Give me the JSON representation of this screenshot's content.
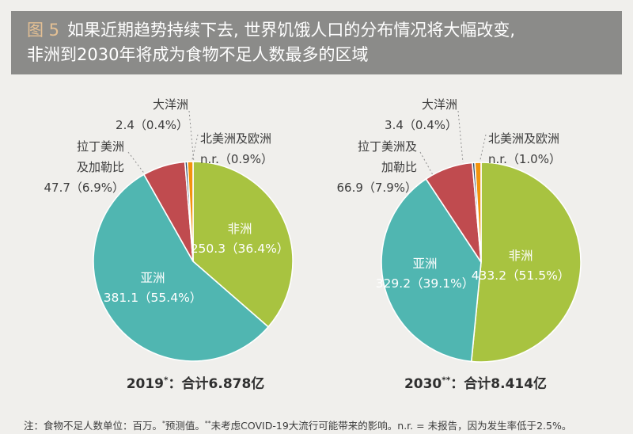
{
  "header": {
    "figure_label": "图 5",
    "title_line1": "如果近期趋势持续下去, 世界饥饿人口的分布情况将大幅改变,",
    "title_line2": "非洲到2030年将成为食物不足人数最多的区域"
  },
  "colors": {
    "title_bar_bg": "#8b8b89",
    "figure_label": "#e4c094",
    "africa": "#a8c340",
    "asia": "#50b6b1",
    "lac": "#c04b4f",
    "oceania": "#2e4d6b",
    "nae": "#f2930d",
    "page_bg": "#f0efec"
  },
  "chart_data": [
    {
      "type": "pie",
      "title": "2019*：合计6.878亿",
      "caption": {
        "year": "2019",
        "note": "*",
        "rest": "：合计6.878亿"
      },
      "unit": "百万",
      "start_angle_deg": 0,
      "direction": "clockwise",
      "slices": [
        {
          "label": "非洲",
          "value": 250.3,
          "pct": 36.4,
          "display": "250.3（36.4%）",
          "color": "#a8c340",
          "label_placement": "inside"
        },
        {
          "label": "亚洲",
          "value": 381.1,
          "pct": 55.4,
          "display": "381.1（55.4%）",
          "color": "#50b6b1",
          "label_placement": "inside"
        },
        {
          "label": "拉丁美洲及加勒比",
          "label_lines": [
            "拉丁美洲",
            "及加勒比"
          ],
          "value": 47.7,
          "pct": 6.9,
          "display": "47.7（6.9%）",
          "color": "#c04b4f",
          "label_placement": "outside"
        },
        {
          "label": "大洋洲",
          "value": 2.4,
          "pct": 0.4,
          "display": "2.4（0.4%）",
          "color": "#2e4d6b",
          "label_placement": "outside"
        },
        {
          "label": "北美洲及欧洲",
          "value": "n.r.",
          "pct": 0.9,
          "display": "n.r.（0.9%）",
          "color": "#f2930d",
          "label_placement": "outside"
        }
      ]
    },
    {
      "type": "pie",
      "title": "2030**：合计8.414亿",
      "caption": {
        "year": "2030",
        "note": "**",
        "rest": "：合计8.414亿"
      },
      "unit": "百万",
      "start_angle_deg": 0,
      "direction": "clockwise",
      "slices": [
        {
          "label": "非洲",
          "value": 433.2,
          "pct": 51.5,
          "display": "433.2（51.5%）",
          "color": "#a8c340",
          "label_placement": "inside"
        },
        {
          "label": "亚洲",
          "value": 329.2,
          "pct": 39.1,
          "display": "329.2（39.1%）",
          "color": "#50b6b1",
          "label_placement": "inside"
        },
        {
          "label": "拉丁美洲及加勒比",
          "label_lines": [
            "拉丁美洲及",
            "加勒比"
          ],
          "value": 66.9,
          "pct": 7.9,
          "display": "66.9（7.9%）",
          "color": "#c04b4f",
          "label_placement": "outside"
        },
        {
          "label": "大洋洲",
          "value": 3.4,
          "pct": 0.4,
          "display": "3.4（0.4%）",
          "color": "#2e4d6b",
          "label_placement": "outside"
        },
        {
          "label": "北美洲及欧洲",
          "value": "n.r.",
          "pct": 1.0,
          "display": "n.r.（1.0%）",
          "color": "#f2930d",
          "label_placement": "outside"
        }
      ]
    }
  ],
  "footnote": {
    "parts": [
      {
        "t": "注：食物不足人数单位：百万。"
      },
      {
        "t": "*",
        "sup": true
      },
      {
        "t": "预测值。"
      },
      {
        "t": "**",
        "sup": true
      },
      {
        "t": "未考虑COVID-19大流行可能带来的影响。n.r. = 未报告，因为发生率低于2.5%。"
      }
    ]
  }
}
